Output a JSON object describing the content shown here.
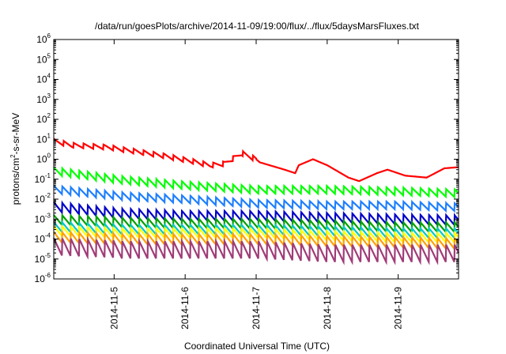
{
  "chart_data": {
    "type": "line",
    "title": "/data/run/goesPlots/archive/2014-11-09/19:00/flux/../flux/5daysMarsFluxes.txt",
    "xlabel": "Coordinated Universal Time (UTC)",
    "ylabel": {
      "base": "protons/cm",
      "sup": "2",
      "rest": "-s-sr-MeV"
    },
    "x_ticks": [
      "2014-11-5",
      "2014-11-6",
      "2014-11-7",
      "2014-11-8",
      "2014-11-9"
    ],
    "xlim_days_after_2014_11_4": [
      0.15,
      5.85
    ],
    "y_scale": "log",
    "ylim": [
      1e-06,
      1000000.0
    ],
    "y_ticks": [
      {
        "base": "10",
        "exp": "6"
      },
      {
        "base": "10",
        "exp": "5"
      },
      {
        "base": "10",
        "exp": "4"
      },
      {
        "base": "10",
        "exp": "3"
      },
      {
        "base": "10",
        "exp": "2"
      },
      {
        "base": "10",
        "exp": "1"
      },
      {
        "base": "10",
        "exp": "0"
      },
      {
        "base": "10",
        "exp": "-1"
      },
      {
        "base": "10",
        "exp": "-2"
      },
      {
        "base": "10",
        "exp": "-3"
      },
      {
        "base": "10",
        "exp": "-4"
      },
      {
        "base": "10",
        "exp": "-5"
      },
      {
        "base": "10",
        "exp": "-6"
      }
    ],
    "series": [
      {
        "color": "#ff0000",
        "sawtooth_points": [
          [
            0.15,
            8
          ],
          [
            0.4,
            5
          ],
          [
            0.9,
            4
          ],
          [
            1.3,
            2.5
          ],
          [
            1.7,
            1.5
          ],
          [
            2.1,
            0.8
          ],
          [
            2.35,
            0.5
          ],
          [
            2.55,
            0.6
          ],
          [
            2.8,
            2
          ],
          [
            3.0,
            1.0
          ],
          [
            3.05,
            0.7
          ],
          [
            3.4,
            0.3
          ],
          [
            3.55,
            0.2
          ],
          [
            3.6,
            0.5
          ],
          [
            3.8,
            1.0
          ],
          [
            4.0,
            0.5
          ],
          [
            4.3,
            0.12
          ],
          [
            4.45,
            0.08
          ],
          [
            4.7,
            0.2
          ],
          [
            4.85,
            0.3
          ],
          [
            5.1,
            0.15
          ],
          [
            5.4,
            0.12
          ],
          [
            5.65,
            0.35
          ],
          [
            5.85,
            0.4
          ]
        ],
        "period": 0.14,
        "amp_decades": 0.25,
        "saw_start": 0.15,
        "saw_end": 3.0
      },
      {
        "color": "#00ff00",
        "sawtooth_points": [
          [
            0.15,
            0.25
          ],
          [
            1.0,
            0.1
          ],
          [
            2.0,
            0.05
          ],
          [
            3.0,
            0.03
          ],
          [
            4.0,
            0.03
          ],
          [
            5.0,
            0.025
          ],
          [
            5.85,
            0.02
          ]
        ],
        "period": 0.12,
        "amp_decades": 0.4,
        "saw_start": 0.15,
        "saw_end": 5.85
      },
      {
        "color": "#1e7fff",
        "sawtooth_points": [
          [
            0.15,
            0.03
          ],
          [
            1.0,
            0.015
          ],
          [
            2.0,
            0.01
          ],
          [
            3.0,
            0.006
          ],
          [
            4.0,
            0.005
          ],
          [
            5.0,
            0.005
          ],
          [
            5.85,
            0.004
          ]
        ],
        "period": 0.12,
        "amp_decades": 0.4,
        "saw_start": 0.15,
        "saw_end": 5.85
      },
      {
        "color": "#0000c8",
        "sawtooth_points": [
          [
            0.15,
            0.004
          ],
          [
            1.0,
            0.002
          ],
          [
            2.0,
            0.0015
          ],
          [
            3.0,
            0.0015
          ],
          [
            4.0,
            0.0012
          ],
          [
            5.0,
            0.001
          ],
          [
            5.85,
            0.0009
          ]
        ],
        "period": 0.12,
        "amp_decades": 0.5,
        "saw_start": 0.15,
        "saw_end": 5.85
      },
      {
        "color": "#00a000",
        "sawtooth_points": [
          [
            0.15,
            0.0009
          ],
          [
            1.0,
            0.0007
          ],
          [
            2.0,
            0.0006
          ],
          [
            3.0,
            0.0006
          ],
          [
            4.0,
            0.0005
          ],
          [
            5.0,
            0.0004
          ],
          [
            5.85,
            0.0004
          ]
        ],
        "period": 0.12,
        "amp_decades": 0.5,
        "saw_start": 0.15,
        "saw_end": 5.85
      },
      {
        "color": "#00c8c8",
        "sawtooth_points": [
          [
            0.15,
            0.0004
          ],
          [
            1.0,
            0.0003
          ],
          [
            2.0,
            0.0003
          ],
          [
            3.0,
            0.0003
          ],
          [
            4.0,
            0.00025
          ],
          [
            5.0,
            0.0002
          ],
          [
            5.85,
            0.0002
          ]
        ],
        "period": 0.12,
        "amp_decades": 0.5,
        "saw_start": 0.15,
        "saw_end": 5.85
      },
      {
        "color": "#ffff00",
        "sawtooth_points": [
          [
            0.15,
            0.00025
          ],
          [
            1.0,
            0.0002
          ],
          [
            2.0,
            0.0002
          ],
          [
            3.0,
            0.0002
          ],
          [
            4.0,
            0.00015
          ],
          [
            5.0,
            0.00012
          ],
          [
            5.85,
            0.00012
          ]
        ],
        "period": 0.12,
        "amp_decades": 0.5,
        "saw_start": 0.15,
        "saw_end": 5.85
      },
      {
        "color": "#ffa000",
        "sawtooth_points": [
          [
            0.15,
            0.00012
          ],
          [
            1.0,
            0.0001
          ],
          [
            2.0,
            0.0001
          ],
          [
            3.0,
            0.0001
          ],
          [
            4.0,
            8e-05
          ],
          [
            5.0,
            7e-05
          ],
          [
            5.85,
            6e-05
          ]
        ],
        "period": 0.12,
        "amp_decades": 0.55,
        "saw_start": 0.15,
        "saw_end": 5.85
      },
      {
        "color": "#a03c78",
        "sawtooth_points": [
          [
            0.15,
            4e-05
          ],
          [
            1.0,
            3e-05
          ],
          [
            2.0,
            3e-05
          ],
          [
            3.0,
            3e-05
          ],
          [
            4.0,
            2e-05
          ],
          [
            5.0,
            2e-05
          ],
          [
            5.85,
            2e-05
          ]
        ],
        "period": 0.12,
        "amp_decades": 0.9,
        "saw_start": 0.15,
        "saw_end": 5.85
      }
    ],
    "grid": false,
    "legend": "none"
  }
}
